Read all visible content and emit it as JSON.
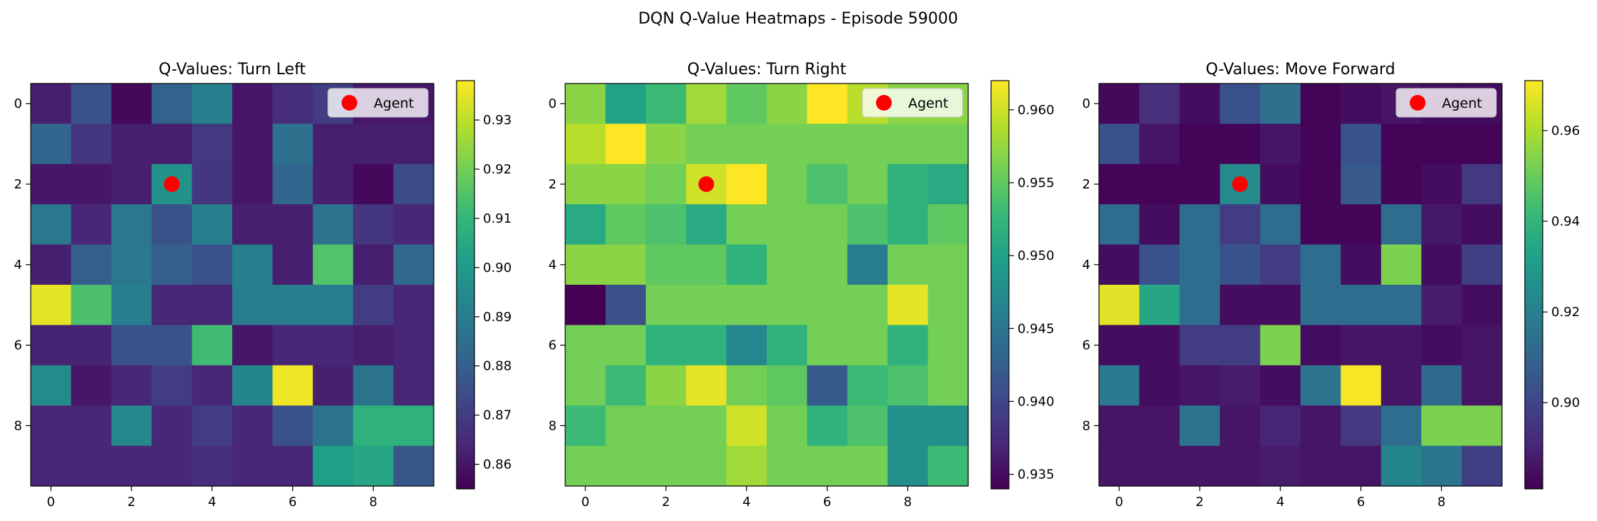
{
  "figure": {
    "suptitle": "DQN Q-Value Heatmaps - Episode 59000"
  },
  "colors": {
    "viridis": [
      "#440154",
      "#482878",
      "#3e4989",
      "#31688e",
      "#26828e",
      "#1f9e89",
      "#35b779",
      "#6ece58",
      "#b5de2b",
      "#fde725"
    ],
    "agent_marker": "#ff0000"
  },
  "chart_data": [
    {
      "type": "heatmap",
      "title": "Q-Values: Turn Left",
      "x_ticks": [
        0,
        2,
        4,
        6,
        8
      ],
      "y_ticks": [
        0,
        2,
        4,
        6,
        8
      ],
      "vmin": 0.855,
      "vmax": 0.938,
      "colorbar_ticks": [
        0.86,
        0.87,
        0.88,
        0.89,
        0.9,
        0.91,
        0.92,
        0.93
      ],
      "colorbar_labels": [
        "0.86",
        "0.87",
        "0.88",
        "0.89",
        "0.90",
        "0.91",
        "0.92",
        "0.93"
      ],
      "agent": {
        "x": 3,
        "y": 2,
        "label": "Agent"
      },
      "legend": "top-right",
      "values": [
        [
          0.862,
          0.876,
          0.857,
          0.881,
          0.891,
          0.86,
          0.866,
          0.87,
          0.86,
          0.86
        ],
        [
          0.882,
          0.868,
          0.862,
          0.862,
          0.869,
          0.86,
          0.886,
          0.862,
          0.862,
          0.862
        ],
        [
          0.86,
          0.86,
          0.862,
          0.897,
          0.868,
          0.86,
          0.882,
          0.862,
          0.857,
          0.874
        ],
        [
          0.888,
          0.864,
          0.888,
          0.876,
          0.891,
          0.862,
          0.862,
          0.887,
          0.868,
          0.864
        ],
        [
          0.862,
          0.88,
          0.888,
          0.88,
          0.876,
          0.891,
          0.862,
          0.915,
          0.862,
          0.883
        ],
        [
          0.935,
          0.914,
          0.89,
          0.864,
          0.864,
          0.89,
          0.89,
          0.89,
          0.87,
          0.864
        ],
        [
          0.863,
          0.863,
          0.876,
          0.876,
          0.912,
          0.86,
          0.864,
          0.864,
          0.862,
          0.864
        ],
        [
          0.895,
          0.86,
          0.864,
          0.87,
          0.864,
          0.893,
          0.936,
          0.862,
          0.887,
          0.864
        ],
        [
          0.864,
          0.864,
          0.894,
          0.864,
          0.87,
          0.864,
          0.876,
          0.887,
          0.908,
          0.908
        ],
        [
          0.864,
          0.864,
          0.864,
          0.864,
          0.866,
          0.864,
          0.864,
          0.901,
          0.904,
          0.878
        ]
      ]
    },
    {
      "type": "heatmap",
      "title": "Q-Values: Turn Right",
      "x_ticks": [
        0,
        2,
        4,
        6,
        8
      ],
      "y_ticks": [
        0,
        2,
        4,
        6,
        8
      ],
      "vmin": 0.934,
      "vmax": 0.962,
      "colorbar_ticks": [
        0.935,
        0.94,
        0.945,
        0.95,
        0.955,
        0.96
      ],
      "colorbar_labels": [
        "0.935",
        "0.940",
        "0.945",
        "0.950",
        "0.955",
        "0.960"
      ],
      "agent": {
        "x": 3,
        "y": 2,
        "label": "Agent"
      },
      "legend": "top-right",
      "values": [
        [
          0.957,
          0.95,
          0.953,
          0.958,
          0.955,
          0.957,
          0.962,
          0.959,
          0.957,
          0.957
        ],
        [
          0.959,
          0.962,
          0.957,
          0.956,
          0.956,
          0.956,
          0.956,
          0.956,
          0.956,
          0.956
        ],
        [
          0.957,
          0.957,
          0.956,
          0.96,
          0.962,
          0.956,
          0.954,
          0.956,
          0.952,
          0.951
        ],
        [
          0.951,
          0.955,
          0.954,
          0.951,
          0.956,
          0.956,
          0.956,
          0.954,
          0.952,
          0.955
        ],
        [
          0.957,
          0.957,
          0.955,
          0.955,
          0.952,
          0.956,
          0.956,
          0.946,
          0.956,
          0.956
        ],
        [
          0.934,
          0.941,
          0.956,
          0.956,
          0.956,
          0.956,
          0.956,
          0.956,
          0.961,
          0.956
        ],
        [
          0.956,
          0.956,
          0.952,
          0.952,
          0.947,
          0.952,
          0.956,
          0.956,
          0.952,
          0.956
        ],
        [
          0.956,
          0.953,
          0.957,
          0.961,
          0.956,
          0.955,
          0.942,
          0.953,
          0.954,
          0.956
        ],
        [
          0.953,
          0.956,
          0.956,
          0.956,
          0.96,
          0.956,
          0.952,
          0.954,
          0.948,
          0.948
        ],
        [
          0.956,
          0.956,
          0.956,
          0.956,
          0.958,
          0.956,
          0.956,
          0.956,
          0.948,
          0.953
        ]
      ]
    },
    {
      "type": "heatmap",
      "title": "Q-Values: Move Forward",
      "x_ticks": [
        0,
        2,
        4,
        6,
        8
      ],
      "y_ticks": [
        0,
        2,
        4,
        6,
        8
      ],
      "vmin": 0.881,
      "vmax": 0.971,
      "colorbar_ticks": [
        0.9,
        0.92,
        0.94,
        0.96
      ],
      "colorbar_labels": [
        "0.90",
        "0.92",
        "0.94",
        "0.96"
      ],
      "agent": {
        "x": 3,
        "y": 2,
        "label": "Agent"
      },
      "legend": "top-right",
      "values": [
        [
          0.883,
          0.893,
          0.884,
          0.904,
          0.914,
          0.882,
          0.884,
          0.886,
          0.884,
          0.884
        ],
        [
          0.904,
          0.886,
          0.882,
          0.882,
          0.886,
          0.882,
          0.904,
          0.882,
          0.882,
          0.882
        ],
        [
          0.882,
          0.882,
          0.882,
          0.924,
          0.884,
          0.882,
          0.906,
          0.882,
          0.884,
          0.896
        ],
        [
          0.913,
          0.884,
          0.913,
          0.897,
          0.913,
          0.882,
          0.882,
          0.913,
          0.887,
          0.884
        ],
        [
          0.884,
          0.904,
          0.913,
          0.904,
          0.897,
          0.913,
          0.884,
          0.953,
          0.884,
          0.898
        ],
        [
          0.967,
          0.934,
          0.913,
          0.884,
          0.884,
          0.913,
          0.913,
          0.913,
          0.888,
          0.884
        ],
        [
          0.884,
          0.884,
          0.897,
          0.897,
          0.953,
          0.884,
          0.886,
          0.886,
          0.884,
          0.886
        ],
        [
          0.918,
          0.884,
          0.886,
          0.888,
          0.884,
          0.915,
          0.97,
          0.886,
          0.912,
          0.886
        ],
        [
          0.886,
          0.886,
          0.915,
          0.886,
          0.89,
          0.886,
          0.896,
          0.913,
          0.953,
          0.953
        ],
        [
          0.886,
          0.886,
          0.886,
          0.886,
          0.888,
          0.886,
          0.886,
          0.922,
          0.916,
          0.898
        ]
      ]
    }
  ]
}
